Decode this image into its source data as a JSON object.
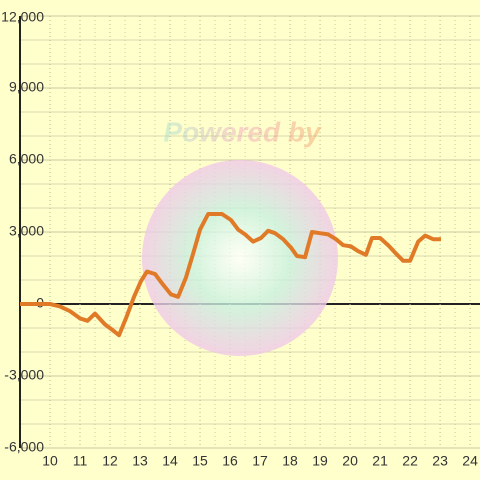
{
  "chart_data": {
    "type": "line",
    "watermark": "Powered by",
    "series": [
      {
        "color": "#e07a26",
        "x": [
          9,
          10,
          10.33,
          10.67,
          11,
          11.25,
          11.5,
          11.83,
          12.1,
          12.3,
          12.53,
          12.8,
          13.03,
          13.23,
          13.5,
          13.77,
          14.03,
          14.27,
          14.53,
          14.77,
          15,
          15.27,
          15.73,
          16.03,
          16.27,
          16.5,
          16.77,
          17.03,
          17.27,
          17.5,
          17.77,
          18.03,
          18.23,
          18.5,
          18.73,
          19,
          19.27,
          19.53,
          19.77,
          20.03,
          20.27,
          20.53,
          20.73,
          21,
          21.27,
          21.53,
          21.77,
          22,
          22.27,
          22.5,
          22.77,
          23.03
        ],
        "values": [
          0,
          0,
          -100,
          -300,
          -600,
          -700,
          -400,
          -850,
          -1100,
          -1300,
          -600,
          300,
          950,
          1350,
          1250,
          800,
          400,
          300,
          1100,
          2100,
          3100,
          3750,
          3750,
          3500,
          3100,
          2900,
          2600,
          2750,
          3050,
          2950,
          2700,
          2350,
          2000,
          1950,
          3000,
          2950,
          2900,
          2700,
          2450,
          2400,
          2200,
          2050,
          2750,
          2750,
          2450,
          2100,
          1800,
          1800,
          2600,
          2850,
          2700,
          2700
        ]
      }
    ],
    "xlim": [
      9,
      24.33
    ],
    "xticks": [
      10,
      11,
      12,
      13,
      14,
      15,
      16,
      17,
      18,
      19,
      20,
      21,
      22,
      23,
      24
    ],
    "ylim": [
      -6000,
      12000
    ],
    "yticks": [
      {
        "value": -6000,
        "label": "-6,000"
      },
      {
        "value": -3000,
        "label": "-3,000"
      },
      0,
      {
        "value": 3000,
        "label": "3,000"
      },
      {
        "value": 6000,
        "label": "6,000"
      },
      {
        "value": 9000,
        "label": "9,000"
      },
      {
        "value": 12000,
        "label": "12,000"
      }
    ],
    "grid": true
  }
}
